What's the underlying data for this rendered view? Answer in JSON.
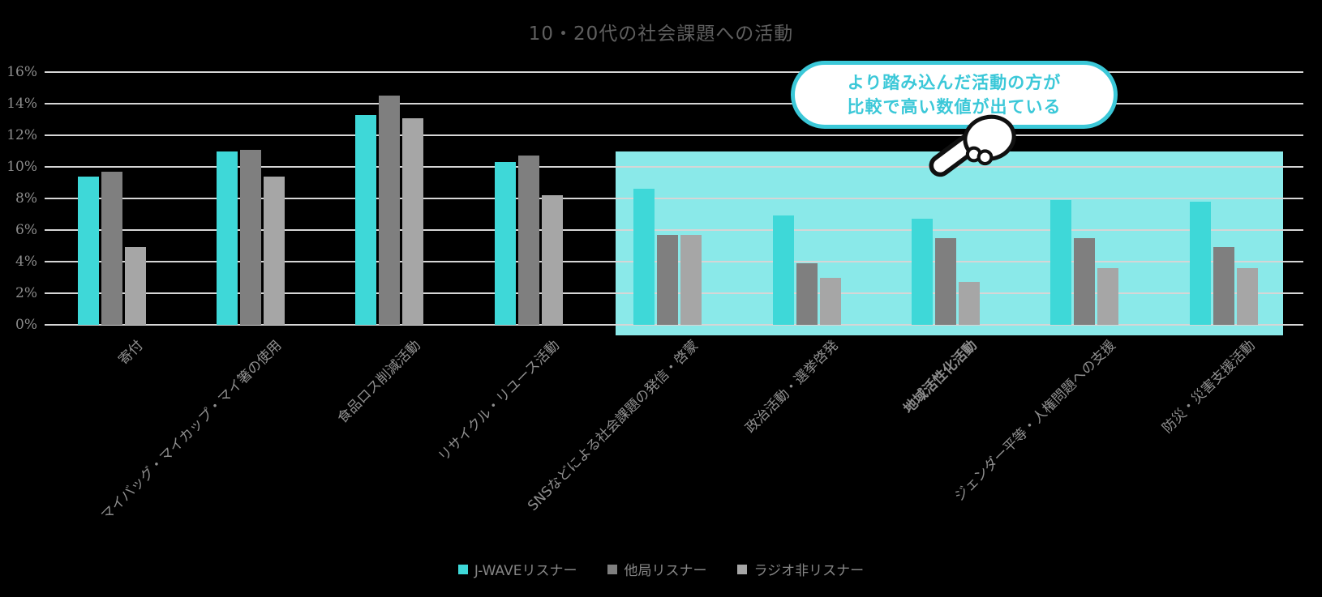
{
  "page": {
    "background": "#000000"
  },
  "chart_data": {
    "type": "bar",
    "title": "10・20代の社会課題への活動",
    "categories": [
      "寄付",
      "マイバッグ・マイカップ・マイ箸の使用",
      "食品ロス削減活動",
      "リサイクル・リユース活動",
      "SNSなどによる社会課題の発信・啓蒙",
      "政治活動・選挙啓発",
      "地域活性化活動",
      "ジェンダー平等・人権問題への支援",
      "防災・災害支援活動"
    ],
    "emphasized_category": "地域活性化活動",
    "series": [
      {
        "name": "J-WAVEリスナー",
        "color": "#3ED8D8",
        "values": [
          9.4,
          11.0,
          13.3,
          10.3,
          8.6,
          6.9,
          6.7,
          7.9,
          7.8
        ]
      },
      {
        "name": "他局リスナー",
        "color": "#7F7F7F",
        "values": [
          9.7,
          11.1,
          14.5,
          10.7,
          5.7,
          3.9,
          5.5,
          5.5,
          4.9
        ]
      },
      {
        "name": "ラジオ非リスナー",
        "color": "#A6A6A6",
        "values": [
          4.9,
          9.4,
          13.1,
          8.2,
          5.7,
          3.0,
          2.7,
          3.6,
          3.6
        ]
      }
    ],
    "y_axis": {
      "min": 0,
      "max": 16,
      "step": 2,
      "tick_labels": [
        "0%",
        "2%",
        "4%",
        "6%",
        "8%",
        "10%",
        "12%",
        "14%",
        "16%"
      ]
    },
    "grid": true,
    "legend_position": "bottom",
    "highlight_region": {
      "from_category": "SNSなどによる社会課題の発信・啓蒙",
      "to_category": "防災・災害支援活動",
      "color": "#8AE9E9",
      "top_value": 11
    }
  },
  "annotation": {
    "line1": "より踏み込んだ活動の方が",
    "line2": "比較で高い数値が出ている",
    "text_color": "#3BC8D8",
    "border_color": "#3BC8D8",
    "icon": "pointing-hand-down-left"
  },
  "colors": {
    "title": "#5F5F5F",
    "axis_labels": "#8C8C8C",
    "category_labels": "#8F8F8F",
    "gridline": "#D6D6D6",
    "background": "#000000"
  }
}
